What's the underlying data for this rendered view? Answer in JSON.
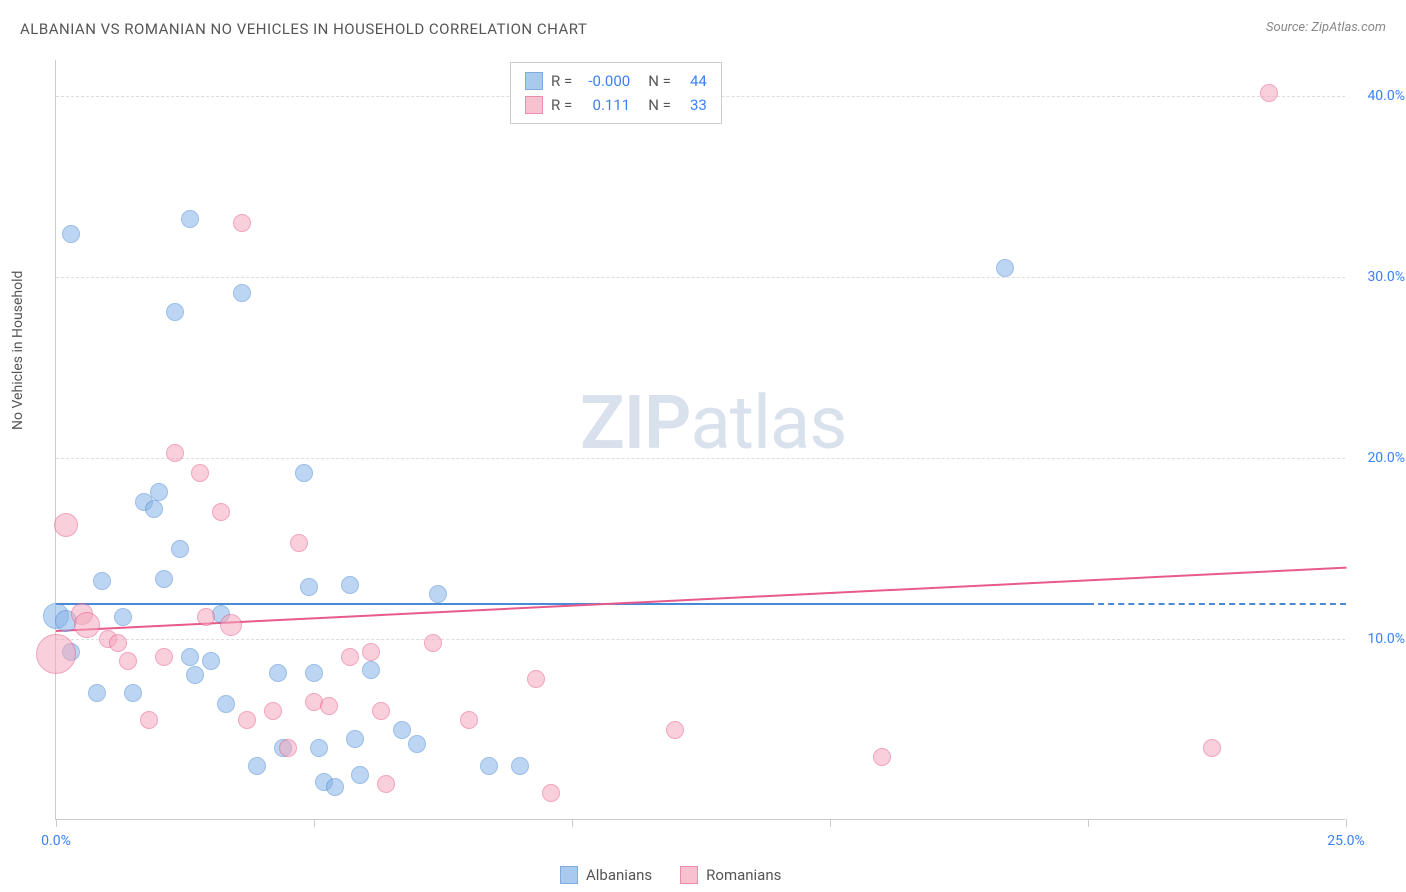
{
  "title": "ALBANIAN VS ROMANIAN NO VEHICLES IN HOUSEHOLD CORRELATION CHART",
  "source": "Source: ZipAtlas.com",
  "y_axis_label": "No Vehicles in Household",
  "watermark_bold": "ZIP",
  "watermark_light": "atlas",
  "chart": {
    "type": "scatter",
    "xlim": [
      0,
      25
    ],
    "ylim": [
      0,
      42
    ],
    "x_ticks": [
      0,
      5,
      10,
      15,
      20,
      25
    ],
    "y_ticks": [
      10,
      20,
      30,
      40
    ],
    "x_tick_labels": {
      "0": "0.0%",
      "25": "25.0%"
    },
    "y_tick_labels": {
      "10": "10.0%",
      "20": "20.0%",
      "30": "30.0%",
      "40": "40.0%"
    },
    "background_color": "#ffffff",
    "grid_color": "#dddddd",
    "axis_color": "#cccccc",
    "tick_label_color": "#3b82f6",
    "series": [
      {
        "name": "Albanians",
        "fill": "#87b3e8",
        "stroke": "#4a8ad4",
        "fill_opacity": 0.55,
        "trend": {
          "y_start": 12.0,
          "y_end": 12.0,
          "solid_until_x": 20
        },
        "stats": {
          "R": "-0.000",
          "N": "44"
        },
        "points": [
          {
            "x": 0.3,
            "y": 32.4,
            "r": 9
          },
          {
            "x": 0.0,
            "y": 11.3,
            "r": 13
          },
          {
            "x": 0.2,
            "y": 11.0,
            "r": 11
          },
          {
            "x": 0.3,
            "y": 9.3,
            "r": 9
          },
          {
            "x": 0.9,
            "y": 13.2,
            "r": 9
          },
          {
            "x": 0.8,
            "y": 7.0,
            "r": 9
          },
          {
            "x": 1.3,
            "y": 11.2,
            "r": 9
          },
          {
            "x": 1.5,
            "y": 7.0,
            "r": 9
          },
          {
            "x": 1.7,
            "y": 17.6,
            "r": 9
          },
          {
            "x": 1.9,
            "y": 17.2,
            "r": 9
          },
          {
            "x": 2.0,
            "y": 18.1,
            "r": 9
          },
          {
            "x": 2.1,
            "y": 13.3,
            "r": 9
          },
          {
            "x": 2.3,
            "y": 28.1,
            "r": 9
          },
          {
            "x": 2.4,
            "y": 15.0,
            "r": 9
          },
          {
            "x": 2.6,
            "y": 33.2,
            "r": 9
          },
          {
            "x": 2.6,
            "y": 9.0,
            "r": 9
          },
          {
            "x": 2.7,
            "y": 8.0,
            "r": 9
          },
          {
            "x": 3.0,
            "y": 8.8,
            "r": 9
          },
          {
            "x": 3.2,
            "y": 11.4,
            "r": 9
          },
          {
            "x": 3.3,
            "y": 6.4,
            "r": 9
          },
          {
            "x": 3.6,
            "y": 29.1,
            "r": 9
          },
          {
            "x": 3.9,
            "y": 3.0,
            "r": 9
          },
          {
            "x": 4.3,
            "y": 8.1,
            "r": 9
          },
          {
            "x": 4.4,
            "y": 4.0,
            "r": 9
          },
          {
            "x": 4.8,
            "y": 19.2,
            "r": 9
          },
          {
            "x": 4.9,
            "y": 12.9,
            "r": 9
          },
          {
            "x": 5.0,
            "y": 8.1,
            "r": 9
          },
          {
            "x": 5.1,
            "y": 4.0,
            "r": 9
          },
          {
            "x": 5.2,
            "y": 2.1,
            "r": 9
          },
          {
            "x": 5.4,
            "y": 1.8,
            "r": 9
          },
          {
            "x": 5.7,
            "y": 13.0,
            "r": 9
          },
          {
            "x": 5.8,
            "y": 4.5,
            "r": 9
          },
          {
            "x": 5.9,
            "y": 2.5,
            "r": 9
          },
          {
            "x": 6.1,
            "y": 8.3,
            "r": 9
          },
          {
            "x": 6.7,
            "y": 5.0,
            "r": 9
          },
          {
            "x": 7.0,
            "y": 4.2,
            "r": 9
          },
          {
            "x": 7.4,
            "y": 12.5,
            "r": 9
          },
          {
            "x": 8.4,
            "y": 3.0,
            "r": 9
          },
          {
            "x": 9.0,
            "y": 3.0,
            "r": 9
          },
          {
            "x": 18.4,
            "y": 30.5,
            "r": 9
          }
        ]
      },
      {
        "name": "Romanians",
        "fill": "#f4a8bd",
        "stroke": "#e85a8a",
        "fill_opacity": 0.55,
        "trend": {
          "y_start": 10.5,
          "y_end": 14.0,
          "solid_until_x": 25
        },
        "stats": {
          "R": "0.111",
          "N": "33"
        },
        "points": [
          {
            "x": 0.0,
            "y": 9.2,
            "r": 20
          },
          {
            "x": 0.2,
            "y": 16.3,
            "r": 12
          },
          {
            "x": 0.5,
            "y": 11.4,
            "r": 11
          },
          {
            "x": 0.6,
            "y": 10.8,
            "r": 13
          },
          {
            "x": 1.0,
            "y": 10.0,
            "r": 9
          },
          {
            "x": 1.2,
            "y": 9.8,
            "r": 9
          },
          {
            "x": 1.4,
            "y": 8.8,
            "r": 9
          },
          {
            "x": 1.8,
            "y": 5.5,
            "r": 9
          },
          {
            "x": 2.1,
            "y": 9.0,
            "r": 9
          },
          {
            "x": 2.3,
            "y": 20.3,
            "r": 9
          },
          {
            "x": 2.8,
            "y": 19.2,
            "r": 9
          },
          {
            "x": 2.9,
            "y": 11.2,
            "r": 9
          },
          {
            "x": 3.2,
            "y": 17.0,
            "r": 9
          },
          {
            "x": 3.4,
            "y": 10.8,
            "r": 11
          },
          {
            "x": 3.6,
            "y": 33.0,
            "r": 9
          },
          {
            "x": 3.7,
            "y": 5.5,
            "r": 9
          },
          {
            "x": 4.2,
            "y": 6.0,
            "r": 9
          },
          {
            "x": 4.5,
            "y": 4.0,
            "r": 9
          },
          {
            "x": 4.7,
            "y": 15.3,
            "r": 9
          },
          {
            "x": 5.0,
            "y": 6.5,
            "r": 9
          },
          {
            "x": 5.3,
            "y": 6.3,
            "r": 9
          },
          {
            "x": 5.7,
            "y": 9.0,
            "r": 9
          },
          {
            "x": 6.1,
            "y": 9.3,
            "r": 9
          },
          {
            "x": 6.3,
            "y": 6.0,
            "r": 9
          },
          {
            "x": 6.4,
            "y": 2.0,
            "r": 9
          },
          {
            "x": 7.3,
            "y": 9.8,
            "r": 9
          },
          {
            "x": 8.0,
            "y": 5.5,
            "r": 9
          },
          {
            "x": 9.3,
            "y": 7.8,
            "r": 9
          },
          {
            "x": 9.6,
            "y": 1.5,
            "r": 9
          },
          {
            "x": 12.0,
            "y": 5.0,
            "r": 9
          },
          {
            "x": 16.0,
            "y": 3.5,
            "r": 9
          },
          {
            "x": 22.4,
            "y": 4.0,
            "r": 9
          },
          {
            "x": 23.5,
            "y": 40.2,
            "r": 9
          }
        ]
      }
    ]
  },
  "legend_labels": {
    "R": "R =",
    "N": "N ="
  },
  "bottom_legend": [
    {
      "label": "Albanians",
      "fill": "#87b3e8",
      "stroke": "#4a8ad4"
    },
    {
      "label": "Romanians",
      "fill": "#f4a8bd",
      "stroke": "#e85a8a"
    }
  ]
}
